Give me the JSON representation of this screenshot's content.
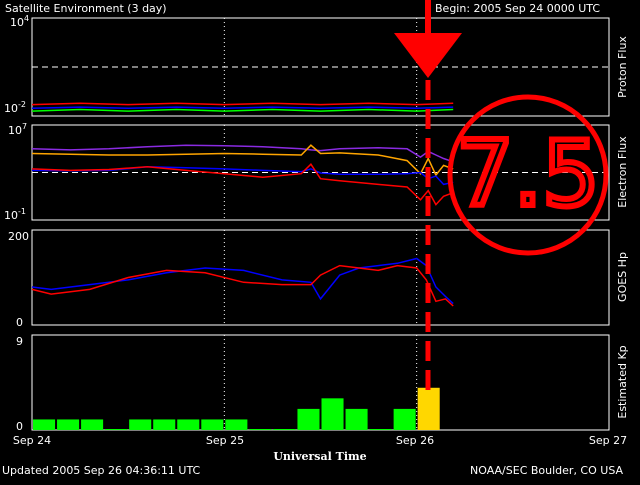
{
  "header": {
    "title": "Satellite Environment (3 day)",
    "begin": "Begin:  2005 Sep 24 0000 UTC"
  },
  "footer": {
    "updated": "Updated 2005 Sep 26 04:36:11 UTC",
    "credit": "NOAA/SEC Boulder, CO USA"
  },
  "x_axis": {
    "label": "Universal Time",
    "ticks": [
      "Sep 24",
      "Sep 25",
      "Sep 26",
      "Sep 27"
    ]
  },
  "annotation": {
    "text": "7.5",
    "color": "#ff0000"
  },
  "colors": {
    "red": "#ff0000",
    "green": "#00ff00",
    "blue": "#0000ff",
    "orange": "#ffa500",
    "purple": "#8a2be2",
    "kp_normal": "#00ff00",
    "kp_storm": "#ffd700"
  },
  "chart_data": [
    {
      "type": "line",
      "ylabel": "Proton Flux",
      "yscale": "log",
      "ylim": [
        0.01,
        10000
      ],
      "y_ticks": [
        {
          "base": "10",
          "exp": "4"
        },
        {
          "base": "10",
          "exp": "-2"
        }
      ],
      "threshold": 10,
      "x": [
        0,
        0.25,
        0.5,
        0.75,
        1.0,
        1.25,
        1.5,
        1.75,
        2.0,
        2.19
      ],
      "series": [
        {
          "color": "#ff0000",
          "values": [
            0.05,
            0.06,
            0.05,
            0.06,
            0.05,
            0.06,
            0.05,
            0.06,
            0.05,
            0.06
          ]
        },
        {
          "color": "#0000ff",
          "values": [
            0.03,
            0.035,
            0.03,
            0.035,
            0.03,
            0.035,
            0.03,
            0.035,
            0.03,
            0.035
          ]
        },
        {
          "color": "#00ff00",
          "values": [
            0.02,
            0.025,
            0.02,
            0.025,
            0.02,
            0.025,
            0.02,
            0.025,
            0.02,
            0.025
          ]
        }
      ]
    },
    {
      "type": "line",
      "ylabel": "Electron Flux",
      "yscale": "log",
      "ylim": [
        0.1,
        10000000
      ],
      "y_ticks": [
        {
          "base": "10",
          "exp": "7"
        },
        {
          "base": "10",
          "exp": "-1"
        }
      ],
      "threshold": 1000,
      "x": [
        0,
        0.2,
        0.4,
        0.6,
        0.8,
        1.0,
        1.2,
        1.4,
        1.45,
        1.5,
        1.6,
        1.8,
        1.95,
        2.02,
        2.06,
        2.1,
        2.14,
        2.19
      ],
      "series": [
        {
          "color": "#8a2be2",
          "values": [
            100000,
            80000,
            100000,
            150000,
            200000,
            180000,
            150000,
            100000,
            80000,
            70000,
            100000,
            120000,
            100000,
            20000,
            60000,
            30000,
            15000,
            8000
          ]
        },
        {
          "color": "#ffa500",
          "values": [
            40000,
            35000,
            30000,
            30000,
            35000,
            40000,
            35000,
            30000,
            200000,
            40000,
            45000,
            30000,
            10000,
            800,
            15000,
            600,
            4000,
            2000
          ]
        },
        {
          "color": "#0000ff",
          "values": [
            1500,
            1400,
            1500,
            3000,
            2500,
            2000,
            1500,
            1200,
            2000,
            900,
            700,
            700,
            800,
            1000,
            300,
            500,
            100,
            150
          ]
        },
        {
          "color": "#ff0000",
          "values": [
            2000,
            1500,
            1800,
            3000,
            1500,
            800,
            400,
            800,
            5000,
            300,
            200,
            100,
            60,
            5,
            30,
            2,
            10,
            20
          ]
        }
      ]
    },
    {
      "type": "line",
      "ylabel": "GOES Hp",
      "ylim": [
        0,
        200
      ],
      "y_ticks": [
        "200",
        "0"
      ],
      "x": [
        0,
        0.1,
        0.3,
        0.5,
        0.7,
        0.9,
        1.1,
        1.3,
        1.45,
        1.5,
        1.6,
        1.7,
        1.8,
        1.9,
        2.0,
        2.05,
        2.1,
        2.15,
        2.19
      ],
      "series": [
        {
          "color": "#0000ff",
          "values": [
            80,
            75,
            85,
            95,
            110,
            120,
            115,
            95,
            90,
            55,
            105,
            120,
            125,
            130,
            140,
            125,
            80,
            60,
            45
          ]
        },
        {
          "color": "#ff0000",
          "values": [
            75,
            65,
            75,
            100,
            115,
            110,
            90,
            85,
            85,
            105,
            125,
            120,
            115,
            125,
            120,
            95,
            50,
            55,
            40
          ]
        }
      ]
    },
    {
      "type": "bar",
      "ylabel": "Estimated Kp",
      "ylim": [
        0,
        9
      ],
      "y_ticks": [
        "9",
        "0"
      ],
      "bin_hours": 3,
      "values": [
        1,
        1,
        1,
        0,
        1,
        1,
        1,
        1,
        1,
        0,
        0,
        2,
        3,
        2,
        0,
        2,
        4
      ],
      "storm_threshold": 4
    }
  ]
}
